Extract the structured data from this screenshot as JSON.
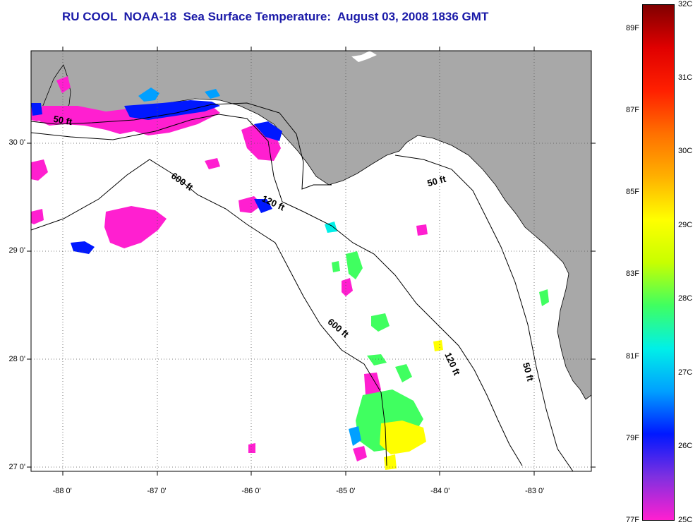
{
  "title": "RU COOL  NOAA-18  Sea Surface Temperature:  August 03, 2008 1836 GMT",
  "map": {
    "lat_labels": [
      "30 0'",
      "29 0'",
      "28 0'",
      "27 0'"
    ],
    "lat_values": [
      30,
      29,
      28,
      27
    ],
    "lon_labels": [
      "-88 0'",
      "-87 0'",
      "-86 0'",
      "-85 0'",
      "-84 0'",
      "-83 0'"
    ],
    "lon_values": [
      -88,
      -87,
      -86,
      -85,
      -84,
      -83
    ],
    "lat_range": [
      26.97,
      30.85
    ],
    "lon_range": [
      -88.33,
      -82.4
    ],
    "land_color": "#a8a8a8",
    "water_color": "#ffffff",
    "contours": [
      {
        "label": "50 ft",
        "depth_ft": 50
      },
      {
        "label": "120 ft",
        "depth_ft": 120
      },
      {
        "label": "600 ft",
        "depth_ft": 600
      }
    ],
    "contour_label_instances": [
      {
        "text": "50 ft",
        "lon": -88.0,
        "lat": 30.18,
        "rotate": 10
      },
      {
        "text": "600 ft",
        "lon": -86.75,
        "lat": 29.62,
        "rotate": 35
      },
      {
        "text": "120 ft",
        "lon": -85.78,
        "lat": 29.42,
        "rotate": 25
      },
      {
        "text": "50 ft",
        "lon": -84.03,
        "lat": 29.62,
        "rotate": -15
      },
      {
        "text": "600 ft",
        "lon": -85.1,
        "lat": 28.27,
        "rotate": 40
      },
      {
        "text": "120 ft",
        "lon": -83.9,
        "lat": 27.95,
        "rotate": 65
      },
      {
        "text": "50 ft",
        "lon": -83.1,
        "lat": 27.88,
        "rotate": 75
      }
    ]
  },
  "colorbar": {
    "celsius_labels": [
      "32C",
      "31C",
      "30C",
      "29C",
      "28C",
      "27C",
      "26C",
      "25C"
    ],
    "celsius_values": [
      32,
      31,
      30,
      29,
      28,
      27,
      26,
      25
    ],
    "fahrenheit_labels": [
      "89F",
      "87F",
      "85F",
      "83F",
      "81F",
      "79F",
      "77F"
    ],
    "fahrenheit_values": [
      89,
      87,
      85,
      83,
      81,
      79,
      77
    ],
    "range_c": [
      25,
      32
    ],
    "colors": [
      "#ff1fd0",
      "#8030e0",
      "#0018ff",
      "#00a0ff",
      "#00f0e8",
      "#40ff60",
      "#c8ff00",
      "#ffff00",
      "#ffb000",
      "#ff7000",
      "#ff2000",
      "#e00000",
      "#800000"
    ]
  }
}
